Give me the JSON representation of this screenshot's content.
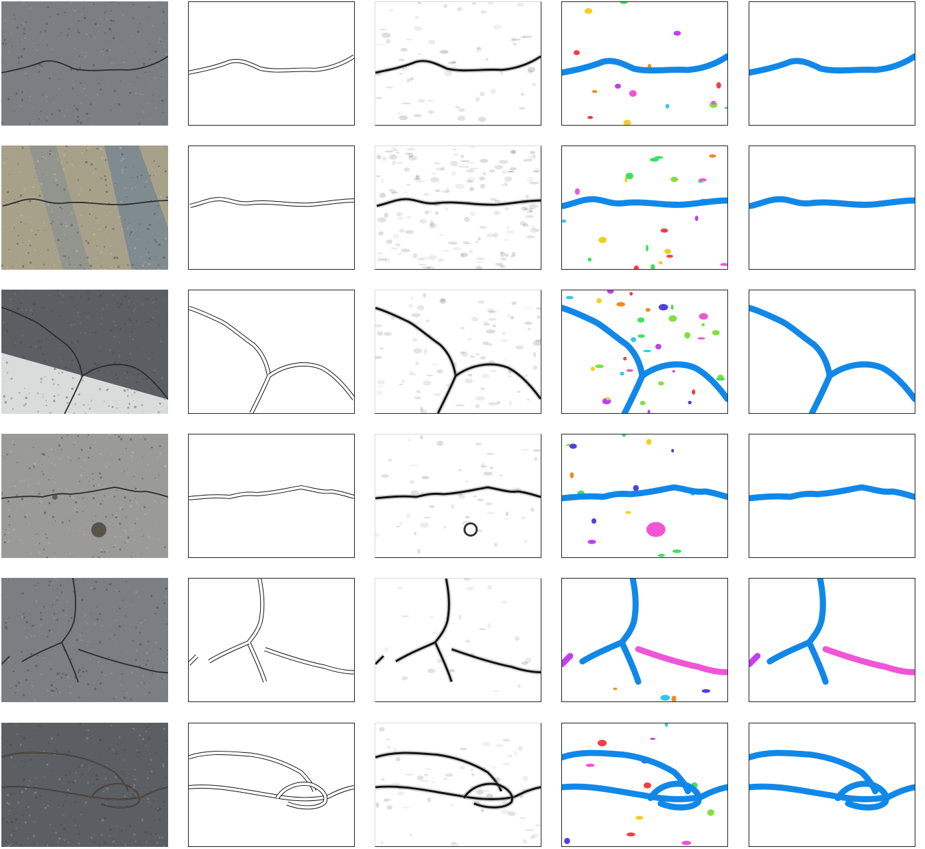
{
  "figure": {
    "columns": [
      "photo",
      "edge-outline",
      "probability-map",
      "instance-segmentation",
      "final-mask"
    ],
    "rows": 6,
    "colors": {
      "background": "#ffffff",
      "crack_primary": "#1188e8",
      "crack_secondary": "#f055d6",
      "outline": "#111111",
      "frame": "#222222",
      "asphalt_dark": "#5b5e63",
      "asphalt_mid": "#7b7e82",
      "asphalt_light": "#9a9b98",
      "asphalt_tan": "#a8a18a",
      "lane_marking": "#dadcdc"
    },
    "noise_colors": [
      "#f04040",
      "#f08a20",
      "#f0d020",
      "#40e060",
      "#30c8f0",
      "#5040e0",
      "#c040f0",
      "#f055d6",
      "#80e040"
    ]
  }
}
